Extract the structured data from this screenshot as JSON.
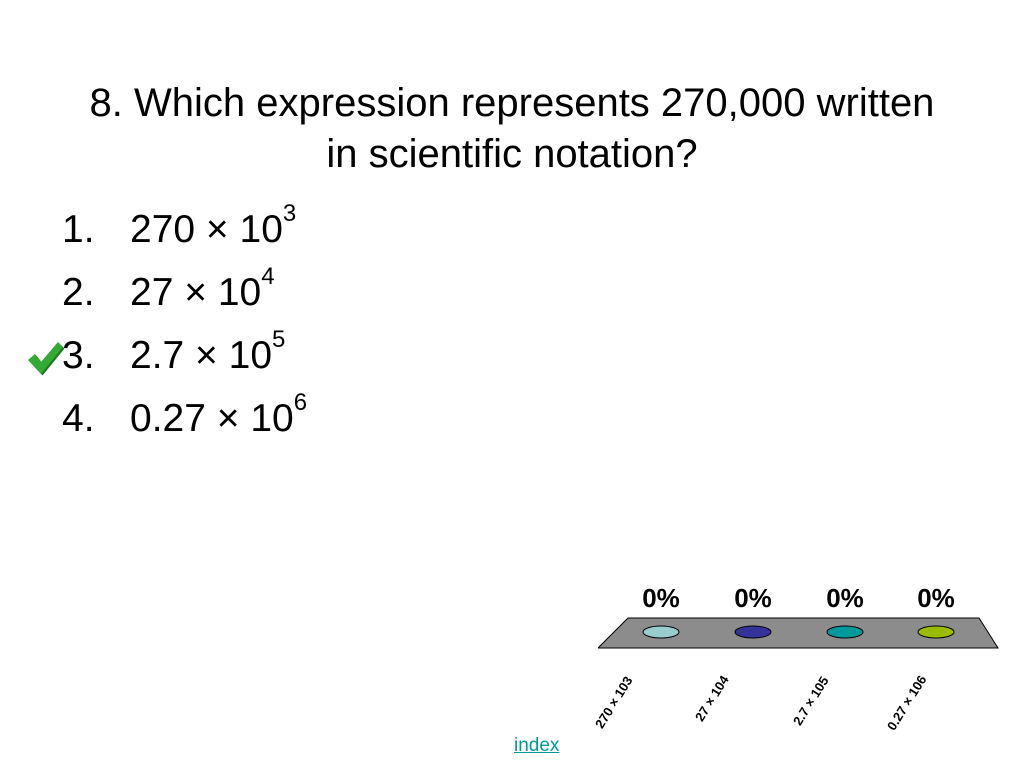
{
  "question": {
    "line1": "8. Which expression represents 270,000 written",
    "line2": "in scientific notation?"
  },
  "options": [
    {
      "number": "1.",
      "expression": "270 × 10",
      "exponent": "3",
      "correct": false
    },
    {
      "number": "2.",
      "expression": "27 × 10",
      "exponent": "4",
      "correct": false
    },
    {
      "number": "3.",
      "expression": "2.7 × 10",
      "exponent": "5",
      "correct": true
    },
    {
      "number": "4.",
      "expression": "0.27 × 10",
      "exponent": "6",
      "correct": false
    }
  ],
  "correct_mark_icon": "check-mark-icon",
  "chart_data": {
    "type": "bar",
    "categories": [
      "270 × 103",
      "27 × 104",
      "2.7 × 105",
      "0.27 × 106"
    ],
    "values": [
      0,
      0,
      0,
      0
    ],
    "value_labels": [
      "0%",
      "0%",
      "0%",
      "0%"
    ],
    "colors": [
      "#99CCCC",
      "#333399",
      "#009999",
      "#99BB00"
    ],
    "ylim": [
      0,
      100
    ],
    "grid": false
  },
  "footer": {
    "link_label": "index",
    "link_color": "#009999"
  },
  "colors": {
    "check_mark": "#33AA33",
    "platform": "#8C8C8C"
  }
}
